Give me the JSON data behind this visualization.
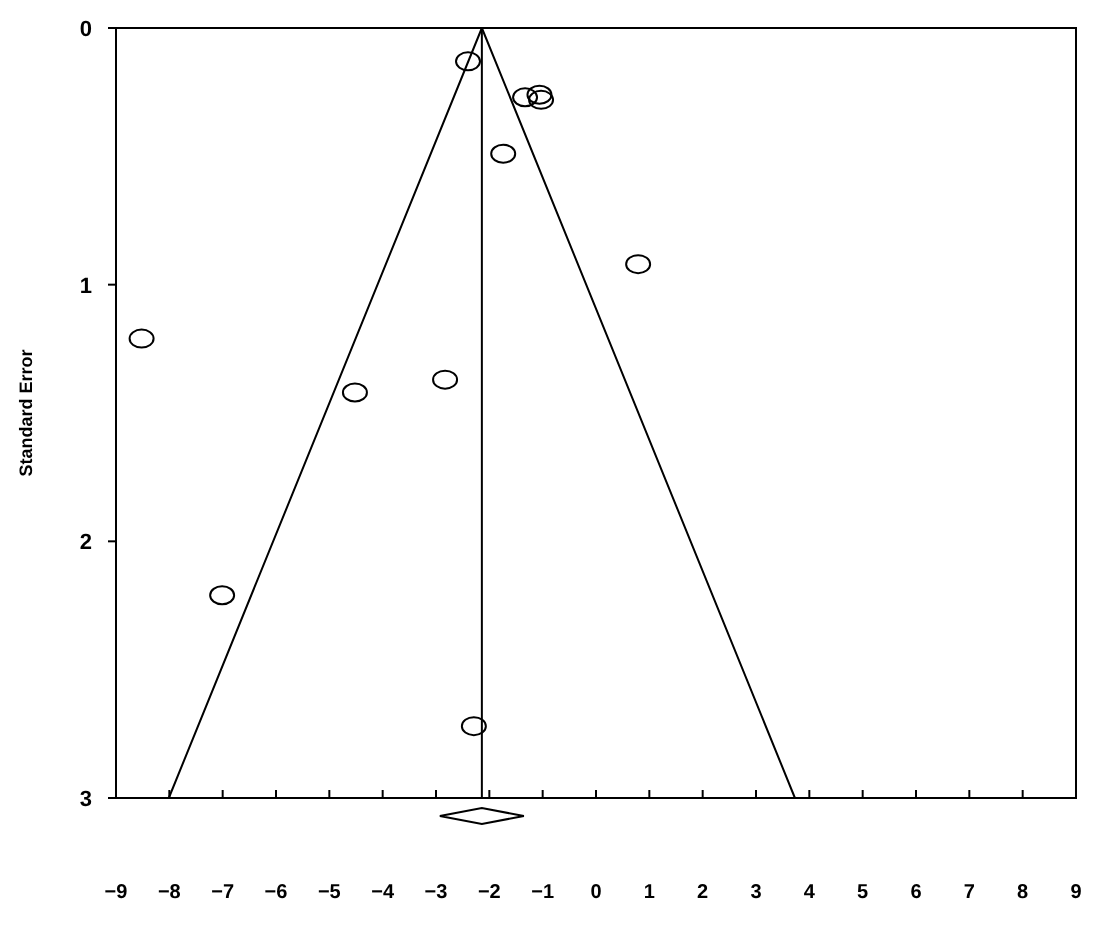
{
  "chart_data": {
    "type": "scatter",
    "ylabel": "Standard Error",
    "xlim": [
      -9,
      9
    ],
    "xticks": [
      -9,
      -8,
      -7,
      -6,
      -5,
      -4,
      -3,
      -2,
      -1,
      0,
      1,
      2,
      3,
      4,
      5,
      6,
      7,
      8,
      9
    ],
    "ylim": [
      3,
      0
    ],
    "yticks": [
      0,
      1,
      2,
      3
    ],
    "grid": false,
    "marker": "circle",
    "series": [
      {
        "color": "#000000",
        "x": [
          -2.4,
          -1.33,
          -1.06,
          -1.03,
          -1.74,
          0.79,
          -8.52,
          -2.83,
          -4.52,
          -7.01,
          -2.29
        ],
        "values": [
          0.13,
          0.27,
          0.26,
          0.28,
          0.49,
          0.92,
          1.21,
          1.37,
          1.42,
          2.21,
          2.72
        ]
      },
      {
        "type": "line",
        "color": "#000000",
        "marker": "none",
        "line_style": "solid",
        "x": [
          -8.01,
          -2.14,
          3.73
        ],
        "values": [
          3,
          0,
          3
        ]
      }
    ],
    "ref_lines": [
      {
        "axis": "x",
        "value": -2.14,
        "color": "#000000"
      }
    ]
  }
}
